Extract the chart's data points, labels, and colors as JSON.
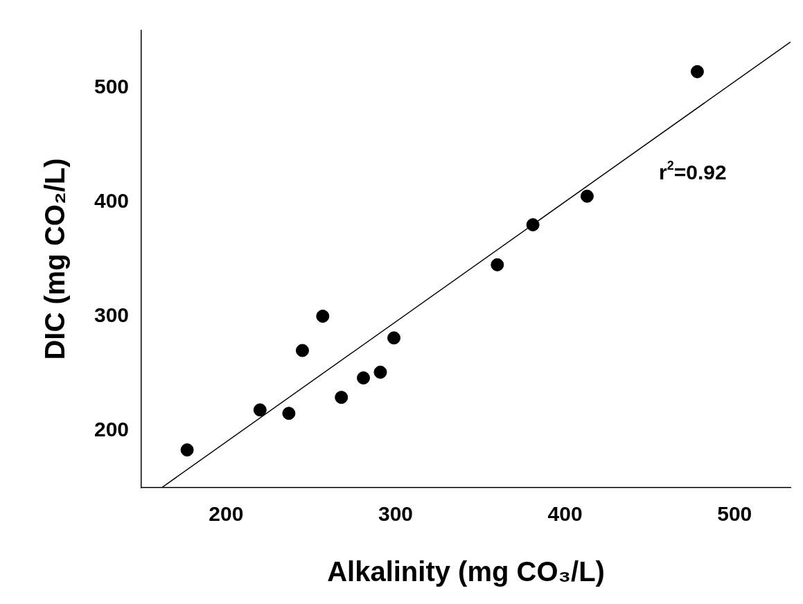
{
  "chart_data": {
    "type": "scatter",
    "xlabel": "Alkalinity (mg CO₃/L)",
    "ylabel": "DIC (mg CO₂/L)",
    "xlim": [
      150,
      533
    ],
    "ylim": [
      150,
      550
    ],
    "xticks": [
      200,
      300,
      400,
      500
    ],
    "yticks": [
      200,
      300,
      400,
      500
    ],
    "grid": false,
    "legend": false,
    "marker": "circle",
    "annotations": [
      "r$^{2}$=0.92"
    ],
    "series": [
      {
        "type": "scatter",
        "color": "#000000",
        "x": [
          177,
          220,
          237,
          245,
          257,
          268,
          281,
          291,
          299,
          360,
          381,
          413,
          478
        ],
        "values": [
          183,
          218,
          215,
          270,
          300,
          229,
          246,
          251,
          281,
          345,
          380,
          405,
          514
        ]
      },
      {
        "type": "line",
        "color": "#000000",
        "x": [
          162,
          533
        ],
        "values": [
          150,
          540
        ],
        "line_style": "solid",
        "marker": "none"
      }
    ]
  }
}
